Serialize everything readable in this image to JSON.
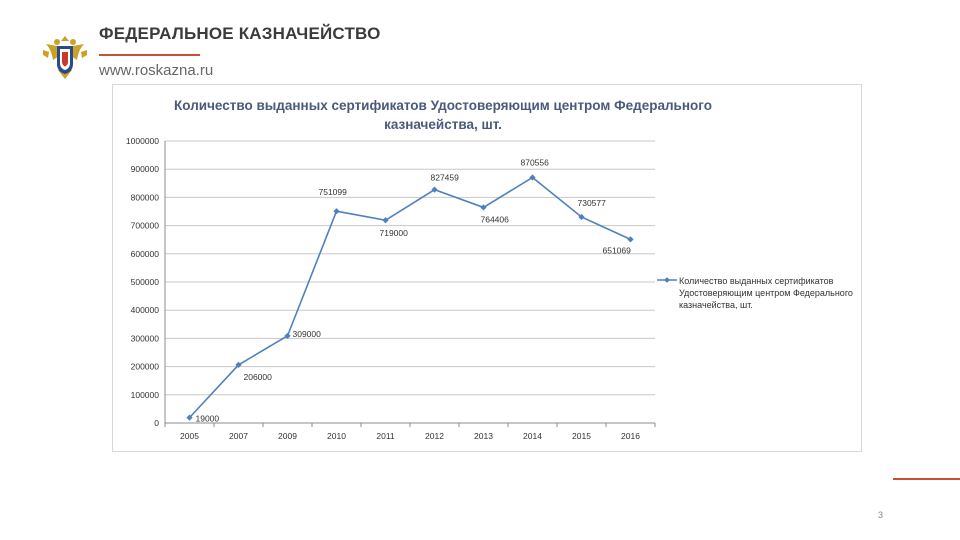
{
  "header": {
    "org_name": "ФЕДЕРАЛЬНОЕ КАЗНАЧЕЙСТВО",
    "url": "www.roskazna.ru",
    "emblem_icon": "double-headed-eagle-emblem",
    "accent_color": "#c9512f"
  },
  "chart_data": {
    "type": "line",
    "title": "Количество выданных сертификатов Удостоверяющим центром Федерального казначейства, шт.",
    "categories": [
      "2005",
      "2007",
      "2009",
      "2010",
      "2011",
      "2012",
      "2013",
      "2014",
      "2015",
      "2016"
    ],
    "series": [
      {
        "name": "Количество выданных сертификатов Удостоверяющим центром Федерального казначейства, шт.",
        "values": [
          19000,
          206000,
          309000,
          751099,
          719000,
          827459,
          764406,
          870556,
          730577,
          651069
        ],
        "color": "#4f81bd"
      }
    ],
    "data_labels": [
      "19000",
      "206000",
      "309000",
      "751099",
      "719000",
      "827459",
      "764406",
      "870556",
      "730577",
      "651069"
    ],
    "ylim": [
      0,
      1000000
    ],
    "y_ticks": [
      "0",
      "100000",
      "200000",
      "300000",
      "400000",
      "500000",
      "600000",
      "700000",
      "800000",
      "900000",
      "1000000"
    ],
    "xlabel": "",
    "ylabel": "",
    "grid": true,
    "legend_position": "right"
  },
  "footer": {
    "page_number": "3"
  }
}
